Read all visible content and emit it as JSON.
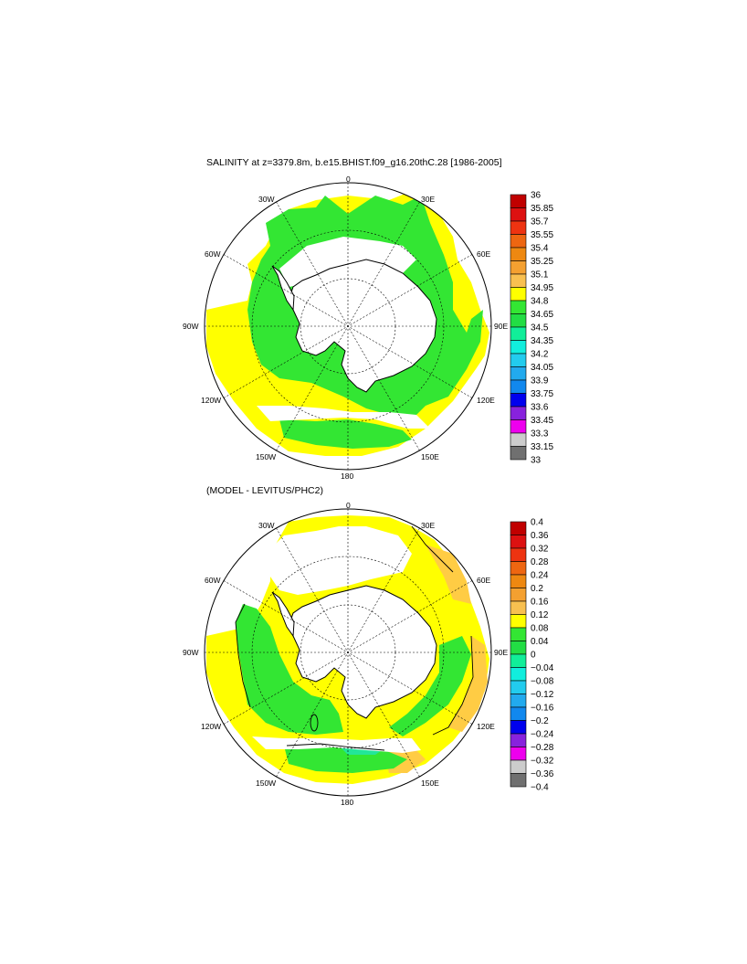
{
  "colors": {
    "ocean_green": "#33e633",
    "ocean_yellow": "#ffff00",
    "ocean_orange": "#ffcc44",
    "ocean_teal": "#22e699",
    "land": "#ffffff",
    "coast": "#000000"
  },
  "panels": [
    {
      "id": "top",
      "title": "SALINITY at z=3379.8m, b.e15.BHIST.f09_g16.20thC.28 [1986-2005]",
      "labels": {
        "lon_0": "0",
        "lon_30e": "30E",
        "lon_60e": "60E",
        "lon_90e": "90E",
        "lon_120e": "120E",
        "lon_150e": "150E",
        "lon_180": "180",
        "lon_150w": "150W",
        "lon_120w": "120W",
        "lon_90w": "90W",
        "lon_60w": "60W",
        "lon_30w": "30W"
      },
      "colorbar": {
        "colors": [
          "#c00000",
          "#dd1111",
          "#ee3311",
          "#ee6611",
          "#ee8811",
          "#f4a030",
          "#f8c050",
          "#ffff00",
          "#33e633",
          "#22dd44",
          "#11ee99",
          "#11eedd",
          "#22ccee",
          "#22aaee",
          "#1188ee",
          "#0000ee",
          "#8822dd",
          "#ee00ee",
          "#cccccc",
          "#707070"
        ],
        "labels": [
          "36",
          "35.85",
          "35.7",
          "35.55",
          "35.4",
          "35.25",
          "35.1",
          "34.95",
          "34.8",
          "34.65",
          "34.5",
          "34.35",
          "34.2",
          "34.05",
          "33.9",
          "33.75",
          "33.6",
          "33.45",
          "33.3",
          "33.15",
          "33"
        ]
      }
    },
    {
      "id": "bottom",
      "title": "(MODEL - LEVITUS/PHC2)",
      "labels": {
        "lon_0": "0",
        "lon_30e": "30E",
        "lon_60e": "60E",
        "lon_90e": "90E",
        "lon_120e": "120E",
        "lon_150e": "150E",
        "lon_180": "180",
        "lon_150w": "150W",
        "lon_120w": "120W",
        "lon_90w": "90W",
        "lon_60w": "60W",
        "lon_30w": "30W"
      },
      "colorbar": {
        "colors": [
          "#c00000",
          "#dd1111",
          "#ee3311",
          "#ee6611",
          "#ee8811",
          "#f4a030",
          "#f8c050",
          "#ffff00",
          "#33e633",
          "#22dd44",
          "#11ee99",
          "#11eedd",
          "#22ccee",
          "#22aaee",
          "#1188ee",
          "#0000ee",
          "#8822dd",
          "#ee00ee",
          "#cccccc",
          "#707070"
        ],
        "labels": [
          "0.4",
          "0.36",
          "0.32",
          "0.28",
          "0.24",
          "0.2",
          "0.16",
          "0.12",
          "0.08",
          "0.04",
          "0",
          "−0.04",
          "−0.08",
          "−0.12",
          "−0.16",
          "−0.2",
          "−0.24",
          "−0.28",
          "−0.32",
          "−0.36",
          "−0.4"
        ]
      }
    }
  ]
}
